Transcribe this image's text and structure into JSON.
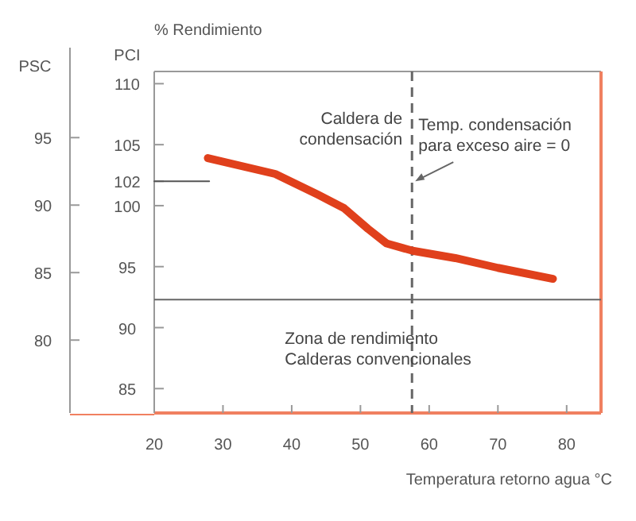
{
  "chart_data": {
    "type": "line",
    "title": "% Rendimiento",
    "xlabel": "Temperatura retorno agua °C",
    "ylabel": "PCI",
    "y2label": "PSC",
    "xlim": [
      20,
      85
    ],
    "xticks": [
      20,
      30,
      40,
      50,
      60,
      70,
      80
    ],
    "ylim": [
      83,
      111
    ],
    "yticks": [
      85,
      90,
      95,
      100,
      102,
      105,
      110
    ],
    "y2lim": [
      74.6,
      99.9
    ],
    "y2ticks": [
      80,
      85,
      90,
      95
    ],
    "grid": false,
    "marker": "none",
    "series": [
      {
        "color": "#e0401c",
        "x": [
          27.8,
          37.6,
          43.8,
          47.6,
          51.1,
          53.8,
          57.6,
          63.8,
          70.0,
          78.0
        ],
        "values": [
          103.9,
          102.6,
          100.9,
          99.8,
          98.1,
          96.9,
          96.3,
          95.7,
          94.9,
          94.0
        ]
      },
      {
        "color": "#555555",
        "x": [
          20,
          28
        ],
        "values": [
          102,
          102
        ]
      }
    ],
    "ref_lines": [
      {
        "axis": "y",
        "value": 92.3,
        "color": "#666666",
        "line_style": "solid"
      },
      {
        "axis": "x",
        "value": 57.5,
        "color": "#666666",
        "line_style": "dashed"
      }
    ],
    "annotations": [
      "Caldera de condensación",
      {
        "text": "Temp. condensación para exceso aire = 0",
        "x": 57.5,
        "y": 102
      },
      {
        "text": "Zona de rendimiento Calderas convencionales",
        "x": 57.5,
        "y": 92.3
      }
    ]
  }
}
